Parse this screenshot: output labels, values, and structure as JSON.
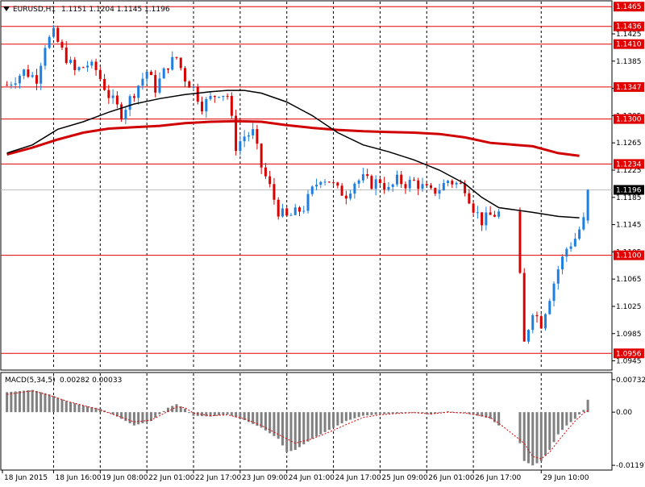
{
  "header": {
    "symbol_text": "EURUSD,H1",
    "ohlc_text": "1.1151 1.1204 1.1145 1.1196",
    "dropdown_icon": "triangle-down-icon"
  },
  "macd_header": {
    "label_text": "MACD(5,34,5)",
    "values_text": "0.00282 0.00033"
  },
  "colors": {
    "background": "#ffffff",
    "grid": "#000000",
    "bull_candle": "#1f7fe0",
    "bear_candle": "#d90000",
    "level_line": "#e00000",
    "ma_slow": "#d00000",
    "ma_fast": "#000000",
    "price_tag": "#e00000",
    "histogram": "#808080",
    "signal": "#e00000"
  },
  "chart_data": [
    {
      "type": "candlestick",
      "title": "EURUSD,H1",
      "ylim": [
        1.0935,
        1.147
      ],
      "y_ticks": [
        {
          "value": 1.1425,
          "label": "1.1425"
        },
        {
          "value": 1.1385,
          "label": "1.1385"
        },
        {
          "value": 1.1345,
          "label": "1.1345"
        },
        {
          "value": 1.1305,
          "label": "1.1305"
        },
        {
          "value": 1.1265,
          "label": "1.1265"
        },
        {
          "value": 1.1225,
          "label": "1.1225"
        },
        {
          "value": 1.1185,
          "label": "1.1185"
        },
        {
          "value": 1.1145,
          "label": "1.1145"
        },
        {
          "value": 1.1105,
          "label": "1.1105"
        },
        {
          "value": 1.1065,
          "label": "1.1065"
        },
        {
          "value": 1.1025,
          "label": "1.1025"
        },
        {
          "value": 1.0985,
          "label": "1.0985"
        },
        {
          "value": 1.0945,
          "label": "1.0945"
        }
      ],
      "horizontal_levels": [
        {
          "value": 1.1465,
          "label": "1.1465"
        },
        {
          "value": 1.1436,
          "label": "1.1436"
        },
        {
          "value": 1.141,
          "label": "1.1410"
        },
        {
          "value": 1.1347,
          "label": "1.1347"
        },
        {
          "value": 1.13,
          "label": "1.1300"
        },
        {
          "value": 1.1234,
          "label": "1.1234"
        },
        {
          "value": 1.11,
          "label": "1.1100"
        },
        {
          "value": 1.0956,
          "label": "1.0956"
        }
      ],
      "current_price": {
        "value": 1.1196,
        "label": "1.1196"
      },
      "x_labels": [
        "18 Jun 2015",
        "18 Jun 16:00",
        "19 Jun 08:00",
        "22 Jun 01:00",
        "22 Jun 17:00",
        "23 Jun 09:00",
        "24 Jun 01:00",
        "24 Jun 17:00",
        "25 Jun 09:00",
        "26 Jun 01:00",
        "26 Jun 17:00",
        "29 Jun 10:00"
      ],
      "price_path": [
        [
          0,
          1.135
        ],
        [
          4,
          1.137
        ],
        [
          7,
          1.136
        ],
        [
          9,
          1.141
        ],
        [
          11,
          1.1425
        ],
        [
          13,
          1.14
        ],
        [
          16,
          1.137
        ],
        [
          19,
          1.138
        ],
        [
          21,
          1.1372
        ],
        [
          24,
          1.1335
        ],
        [
          27,
          1.1308
        ],
        [
          30,
          1.134
        ],
        [
          33,
          1.137
        ],
        [
          35,
          1.1345
        ],
        [
          38,
          1.138
        ],
        [
          40,
          1.139
        ],
        [
          42,
          1.136
        ],
        [
          44,
          1.1345
        ],
        [
          46,
          1.132
        ],
        [
          48,
          1.133
        ],
        [
          50,
          1.134
        ],
        [
          52,
          1.1335
        ],
        [
          54,
          1.126
        ],
        [
          56,
          1.1275
        ],
        [
          58,
          1.128
        ],
        [
          60,
          1.123
        ],
        [
          62,
          1.12
        ],
        [
          64,
          1.1165
        ],
        [
          66,
          1.1155
        ],
        [
          68,
          1.1162
        ],
        [
          70,
          1.117
        ],
        [
          72,
          1.1195
        ],
        [
          74,
          1.1215
        ],
        [
          76,
          1.121
        ],
        [
          78,
          1.1195
        ],
        [
          80,
          1.119
        ],
        [
          82,
          1.1208
        ],
        [
          84,
          1.1212
        ],
        [
          86,
          1.1205
        ],
        [
          88,
          1.121
        ],
        [
          90,
          1.1195
        ],
        [
          92,
          1.121
        ],
        [
          94,
          1.1205
        ],
        [
          96,
          1.1208
        ],
        [
          98,
          1.12
        ],
        [
          100,
          1.1192
        ],
        [
          102,
          1.1198
        ],
        [
          104,
          1.121
        ],
        [
          106,
          1.1205
        ],
        [
          108,
          1.12
        ],
        [
          110,
          1.117
        ],
        [
          112,
          1.115
        ],
        [
          114,
          1.1158
        ],
        [
          116,
          1.1162
        ],
        [
          118,
          1.097
        ],
        [
          120,
          1.102
        ],
        [
          122,
          1.1
        ],
        [
          124,
          1.104
        ],
        [
          126,
          1.108
        ],
        [
          128,
          1.111
        ],
        [
          130,
          1.1125
        ],
        [
          132,
          1.1151
        ],
        [
          133,
          1.1196
        ]
      ],
      "bar_slots": 134,
      "gap_after_slot": 116,
      "series": [
        {
          "name": "MA slow",
          "values": [
            [
              0,
              1.1248
            ],
            [
              6,
              1.1258
            ],
            [
              12,
              1.127
            ],
            [
              18,
              1.128
            ],
            [
              24,
              1.1286
            ],
            [
              30,
              1.1288
            ],
            [
              36,
              1.129
            ],
            [
              42,
              1.1294
            ],
            [
              48,
              1.1296
            ],
            [
              54,
              1.1297
            ],
            [
              60,
              1.1296
            ],
            [
              66,
              1.1291
            ],
            [
              72,
              1.1287
            ],
            [
              78,
              1.1284
            ],
            [
              84,
              1.1282
            ],
            [
              90,
              1.1281
            ],
            [
              96,
              1.128
            ],
            [
              102,
              1.1278
            ],
            [
              108,
              1.1273
            ],
            [
              114,
              1.1265
            ],
            [
              120,
              1.126
            ],
            [
              126,
              1.125
            ],
            [
              131,
              1.1246
            ]
          ]
        },
        {
          "name": "MA fast",
          "values": [
            [
              0,
              1.125
            ],
            [
              6,
              1.1262
            ],
            [
              12,
              1.1285
            ],
            [
              18,
              1.1296
            ],
            [
              24,
              1.131
            ],
            [
              30,
              1.1322
            ],
            [
              36,
              1.133
            ],
            [
              42,
              1.1336
            ],
            [
              48,
              1.134
            ],
            [
              52,
              1.1342
            ],
            [
              56,
              1.1342
            ],
            [
              60,
              1.1338
            ],
            [
              66,
              1.1325
            ],
            [
              72,
              1.1305
            ],
            [
              78,
              1.128
            ],
            [
              84,
              1.1262
            ],
            [
              90,
              1.1252
            ],
            [
              96,
              1.124
            ],
            [
              102,
              1.1225
            ],
            [
              108,
              1.1205
            ],
            [
              112,
              1.1185
            ],
            [
              116,
              1.117
            ],
            [
              120,
              1.1163
            ],
            [
              126,
              1.1157
            ],
            [
              131,
              1.1155
            ]
          ]
        }
      ]
    },
    {
      "type": "histogram",
      "title": "MACD(5,34,5)",
      "ylim": [
        -0.0125,
        0.0082
      ],
      "y_ticks": [
        {
          "value": 0.00732,
          "label": "0.00732"
        },
        {
          "value": 0.0,
          "label": "0.00"
        },
        {
          "value": -0.01197,
          "label": "-0.01197"
        }
      ],
      "histogram": [
        [
          0,
          0.0045
        ],
        [
          6,
          0.005
        ],
        [
          10,
          0.004
        ],
        [
          14,
          0.0025
        ],
        [
          18,
          0.0015
        ],
        [
          22,
          0.0008
        ],
        [
          26,
          -0.001
        ],
        [
          30,
          -0.003
        ],
        [
          34,
          -0.002
        ],
        [
          36,
          -0.0005
        ],
        [
          38,
          0.001
        ],
        [
          40,
          0.0018
        ],
        [
          42,
          0.0008
        ],
        [
          44,
          -0.0008
        ],
        [
          48,
          -0.001
        ],
        [
          52,
          -0.0005
        ],
        [
          56,
          -0.0018
        ],
        [
          60,
          -0.0035
        ],
        [
          64,
          -0.006
        ],
        [
          66,
          -0.009
        ],
        [
          68,
          -0.0085
        ],
        [
          72,
          -0.006
        ],
        [
          76,
          -0.004
        ],
        [
          80,
          -0.002
        ],
        [
          84,
          -0.0008
        ],
        [
          88,
          -0.0005
        ],
        [
          92,
          -0.0003
        ],
        [
          96,
          0.0
        ],
        [
          100,
          -0.0005
        ],
        [
          104,
          0.0002
        ],
        [
          108,
          -0.0002
        ],
        [
          112,
          -0.001
        ],
        [
          114,
          -0.0015
        ],
        [
          116,
          -0.003
        ],
        [
          118,
          -0.011
        ],
        [
          120,
          -0.012
        ],
        [
          122,
          -0.011
        ],
        [
          124,
          -0.0085
        ],
        [
          126,
          -0.005
        ],
        [
          128,
          -0.003
        ],
        [
          130,
          -0.0015
        ],
        [
          132,
          0.0005
        ],
        [
          133,
          0.0028
        ]
      ],
      "signal": [
        [
          0,
          0.004
        ],
        [
          6,
          0.0048
        ],
        [
          10,
          0.0038
        ],
        [
          14,
          0.0025
        ],
        [
          18,
          0.0015
        ],
        [
          22,
          0.0005
        ],
        [
          26,
          -0.0008
        ],
        [
          30,
          -0.0022
        ],
        [
          34,
          -0.0018
        ],
        [
          38,
          0.0002
        ],
        [
          40,
          0.0012
        ],
        [
          42,
          0.001
        ],
        [
          44,
          -0.0002
        ],
        [
          48,
          -0.0008
        ],
        [
          52,
          -0.0006
        ],
        [
          56,
          -0.0015
        ],
        [
          60,
          -0.003
        ],
        [
          64,
          -0.005
        ],
        [
          68,
          -0.007
        ],
        [
          72,
          -0.006
        ],
        [
          76,
          -0.0045
        ],
        [
          80,
          -0.0028
        ],
        [
          84,
          -0.0012
        ],
        [
          88,
          -0.0006
        ],
        [
          92,
          -0.0003
        ],
        [
          96,
          -0.0001
        ],
        [
          100,
          -0.0004
        ],
        [
          104,
          0.0
        ],
        [
          108,
          -0.0002
        ],
        [
          112,
          -0.0008
        ],
        [
          114,
          -0.0012
        ],
        [
          116,
          -0.0025
        ],
        [
          118,
          -0.007
        ],
        [
          120,
          -0.01
        ],
        [
          122,
          -0.0105
        ],
        [
          124,
          -0.009
        ],
        [
          126,
          -0.0065
        ],
        [
          128,
          -0.0042
        ],
        [
          130,
          -0.002
        ],
        [
          132,
          -0.0002
        ],
        [
          133,
          0.0003
        ]
      ]
    }
  ]
}
